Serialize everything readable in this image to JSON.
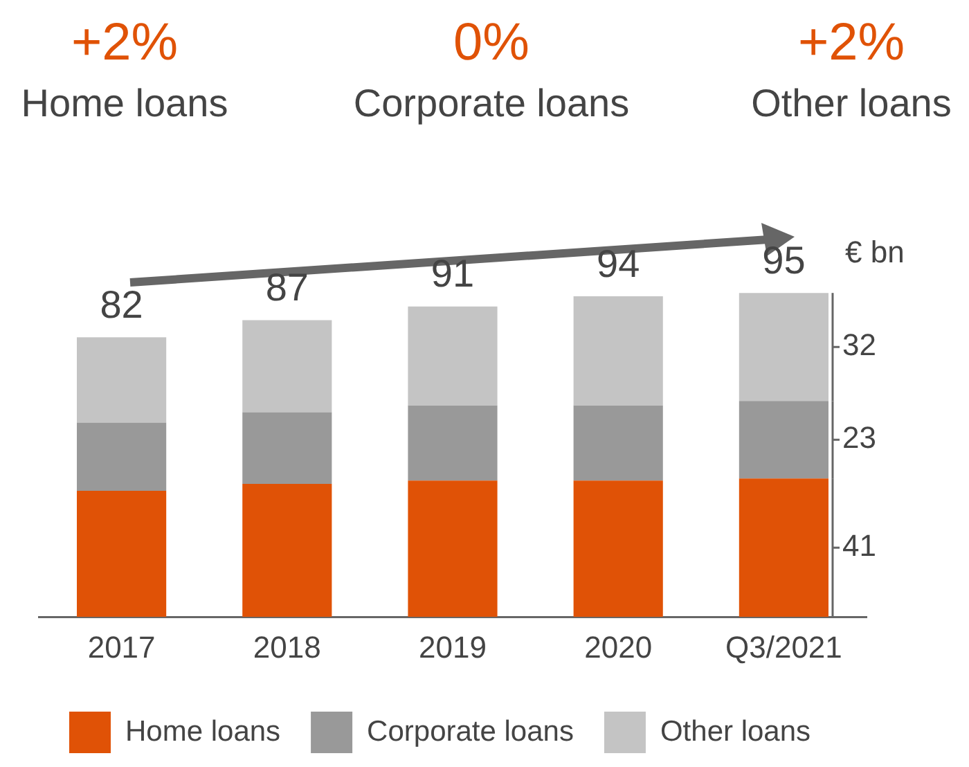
{
  "chart_data": {
    "type": "bar",
    "stacked": true,
    "ylabel": "€ bn",
    "categories": [
      "2017",
      "2018",
      "2019",
      "2020",
      "Q3/2021"
    ],
    "series": [
      {
        "name": "Home loans",
        "color": "#e05206",
        "values": [
          37,
          39,
          40,
          40,
          40.6
        ],
        "value_labels": [
          null,
          null,
          null,
          null,
          "41"
        ]
      },
      {
        "name": "Corporate loans",
        "color": "#999999",
        "values": [
          20,
          21,
          22,
          22,
          22.7
        ],
        "value_labels": [
          null,
          null,
          null,
          null,
          "23"
        ]
      },
      {
        "name": "Other loans",
        "color": "#c4c4c4",
        "values": [
          25,
          27,
          29,
          32,
          31.7
        ],
        "value_labels": [
          null,
          null,
          null,
          null,
          "32"
        ]
      }
    ],
    "totals": [
      "82",
      "87",
      "91",
      "94",
      "95"
    ],
    "annotations": [
      "+2%",
      "Home loans",
      "0%",
      "Corporate loans",
      "+2%",
      "Other loans"
    ],
    "legend": "bottom",
    "grid": false
  }
}
